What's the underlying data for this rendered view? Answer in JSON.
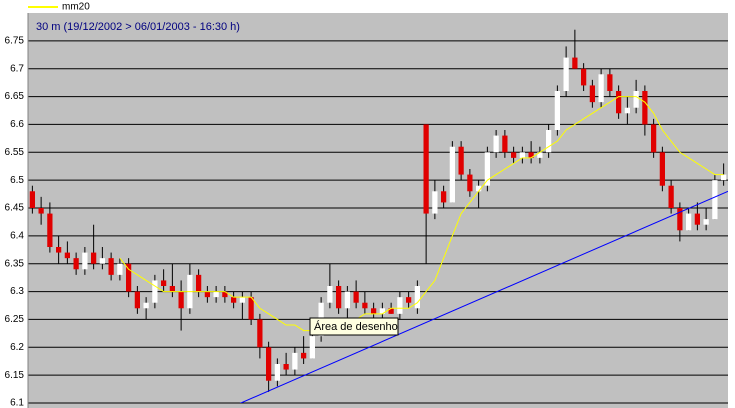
{
  "chart_data": {
    "type": "candlestick",
    "subtitle": "30 m (19/12/2002 > 06/01/2003 - 16:30 h)",
    "open": [
      6.48,
      6.45,
      6.44,
      6.38,
      6.37,
      6.36,
      6.34,
      6.37,
      6.35,
      6.36,
      6.33,
      6.35,
      6.3,
      6.27,
      6.28,
      6.32,
      6.31,
      6.3,
      6.27,
      6.33,
      6.3,
      6.29,
      6.3,
      6.29,
      6.28,
      6.29,
      6.25,
      6.2,
      6.14,
      6.17,
      6.16,
      6.19,
      6.18,
      6.22,
      6.28,
      6.31,
      6.27,
      6.3,
      6.28,
      6.27,
      6.26,
      6.27,
      6.26,
      6.29,
      6.27,
      6.6,
      6.44,
      6.48,
      6.46,
      6.56,
      6.51,
      6.48,
      6.49,
      6.55,
      6.58,
      6.55,
      6.54,
      6.55,
      6.54,
      6.55,
      6.59,
      6.66,
      6.72,
      6.7,
      6.67,
      6.64,
      6.69,
      6.66,
      6.62,
      6.63,
      6.66,
      6.6,
      6.55,
      6.49,
      6.45,
      6.41,
      6.44,
      6.42,
      6.43,
      6.5
    ],
    "high": [
      6.49,
      6.47,
      6.46,
      6.4,
      6.39,
      6.37,
      6.38,
      6.42,
      6.38,
      6.37,
      6.36,
      6.36,
      6.31,
      6.29,
      6.33,
      6.34,
      6.35,
      6.32,
      6.35,
      6.34,
      6.31,
      6.31,
      6.31,
      6.3,
      6.3,
      6.3,
      6.26,
      6.21,
      6.18,
      6.19,
      6.2,
      6.22,
      6.23,
      6.29,
      6.35,
      6.32,
      6.31,
      6.32,
      6.3,
      6.28,
      6.28,
      6.28,
      6.3,
      6.3,
      6.32,
      6.6,
      6.5,
      6.49,
      6.57,
      6.57,
      6.52,
      6.5,
      6.56,
      6.59,
      6.59,
      6.56,
      6.56,
      6.57,
      6.56,
      6.6,
      6.67,
      6.74,
      6.77,
      6.71,
      6.68,
      6.7,
      6.7,
      6.67,
      6.65,
      6.68,
      6.67,
      6.61,
      6.56,
      6.5,
      6.46,
      6.45,
      6.46,
      6.45,
      6.51,
      6.53
    ],
    "low": [
      6.44,
      6.42,
      6.37,
      6.35,
      6.35,
      6.33,
      6.33,
      6.34,
      6.34,
      6.32,
      6.32,
      6.29,
      6.26,
      6.25,
      6.27,
      6.3,
      6.29,
      6.23,
      6.26,
      6.29,
      6.28,
      6.28,
      6.28,
      6.27,
      6.25,
      6.24,
      6.18,
      6.12,
      6.13,
      6.15,
      6.15,
      6.17,
      6.18,
      6.21,
      6.27,
      6.26,
      6.25,
      6.27,
      6.26,
      6.25,
      6.25,
      6.26,
      6.25,
      6.27,
      6.26,
      6.35,
      6.43,
      6.45,
      6.46,
      6.5,
      6.47,
      6.45,
      6.48,
      6.54,
      6.54,
      6.53,
      6.53,
      6.53,
      6.53,
      6.54,
      6.58,
      6.65,
      6.7,
      6.66,
      6.63,
      6.63,
      6.65,
      6.61,
      6.6,
      6.62,
      6.58,
      6.54,
      6.48,
      6.44,
      6.39,
      6.41,
      6.41,
      6.41,
      6.43,
      6.49
    ],
    "close": [
      6.45,
      6.44,
      6.38,
      6.37,
      6.36,
      6.34,
      6.37,
      6.35,
      6.36,
      6.33,
      6.35,
      6.3,
      6.27,
      6.28,
      6.32,
      6.31,
      6.3,
      6.27,
      6.33,
      6.3,
      6.29,
      6.3,
      6.29,
      6.28,
      6.29,
      6.25,
      6.2,
      6.14,
      6.17,
      6.16,
      6.19,
      6.18,
      6.22,
      6.28,
      6.31,
      6.27,
      6.3,
      6.28,
      6.27,
      6.26,
      6.27,
      6.26,
      6.29,
      6.28,
      6.31,
      6.44,
      6.48,
      6.46,
      6.56,
      6.51,
      6.48,
      6.49,
      6.55,
      6.58,
      6.55,
      6.54,
      6.55,
      6.54,
      6.55,
      6.59,
      6.66,
      6.72,
      6.7,
      6.67,
      6.64,
      6.69,
      6.66,
      6.62,
      6.63,
      6.66,
      6.6,
      6.55,
      6.49,
      6.45,
      6.41,
      6.44,
      6.42,
      6.43,
      6.5,
      6.51
    ],
    "up_color": "#ffffff",
    "down_color": "#e00000",
    "series": [
      {
        "name": "mm20",
        "color": "#ffff00",
        "values": [
          null,
          null,
          null,
          null,
          null,
          null,
          null,
          null,
          null,
          null,
          6.36,
          6.34,
          6.33,
          6.32,
          6.31,
          6.3,
          6.3,
          6.3,
          6.3,
          6.3,
          6.3,
          6.3,
          6.3,
          6.29,
          6.29,
          6.29,
          6.27,
          6.26,
          6.25,
          6.24,
          6.24,
          6.23,
          6.23,
          6.23,
          6.24,
          6.24,
          6.25,
          6.25,
          6.26,
          6.26,
          6.26,
          6.27,
          6.27,
          6.27,
          6.28,
          6.3,
          6.32,
          6.36,
          6.4,
          6.44,
          6.46,
          6.48,
          6.5,
          6.51,
          6.52,
          6.53,
          6.54,
          6.54,
          6.55,
          6.56,
          6.57,
          6.59,
          6.6,
          6.61,
          6.62,
          6.63,
          6.64,
          6.65,
          6.65,
          6.65,
          6.64,
          6.62,
          6.59,
          6.57,
          6.55,
          6.54,
          6.53,
          6.52,
          6.51,
          6.51
        ]
      }
    ],
    "trendline": {
      "color": "#0000ff",
      "x": [
        22.36,
        79.5
      ],
      "y": [
        6.09,
        6.48
      ]
    },
    "annotation": "Área de desenho",
    "xlim": [
      -0.5,
      79.5
    ],
    "ylim": [
      6.1,
      6.8
    ],
    "yticks": [
      6.1,
      6.15,
      6.2,
      6.25,
      6.3,
      6.35,
      6.4,
      6.45,
      6.5,
      6.55,
      6.6,
      6.65,
      6.7,
      6.75
    ],
    "grid": true
  }
}
